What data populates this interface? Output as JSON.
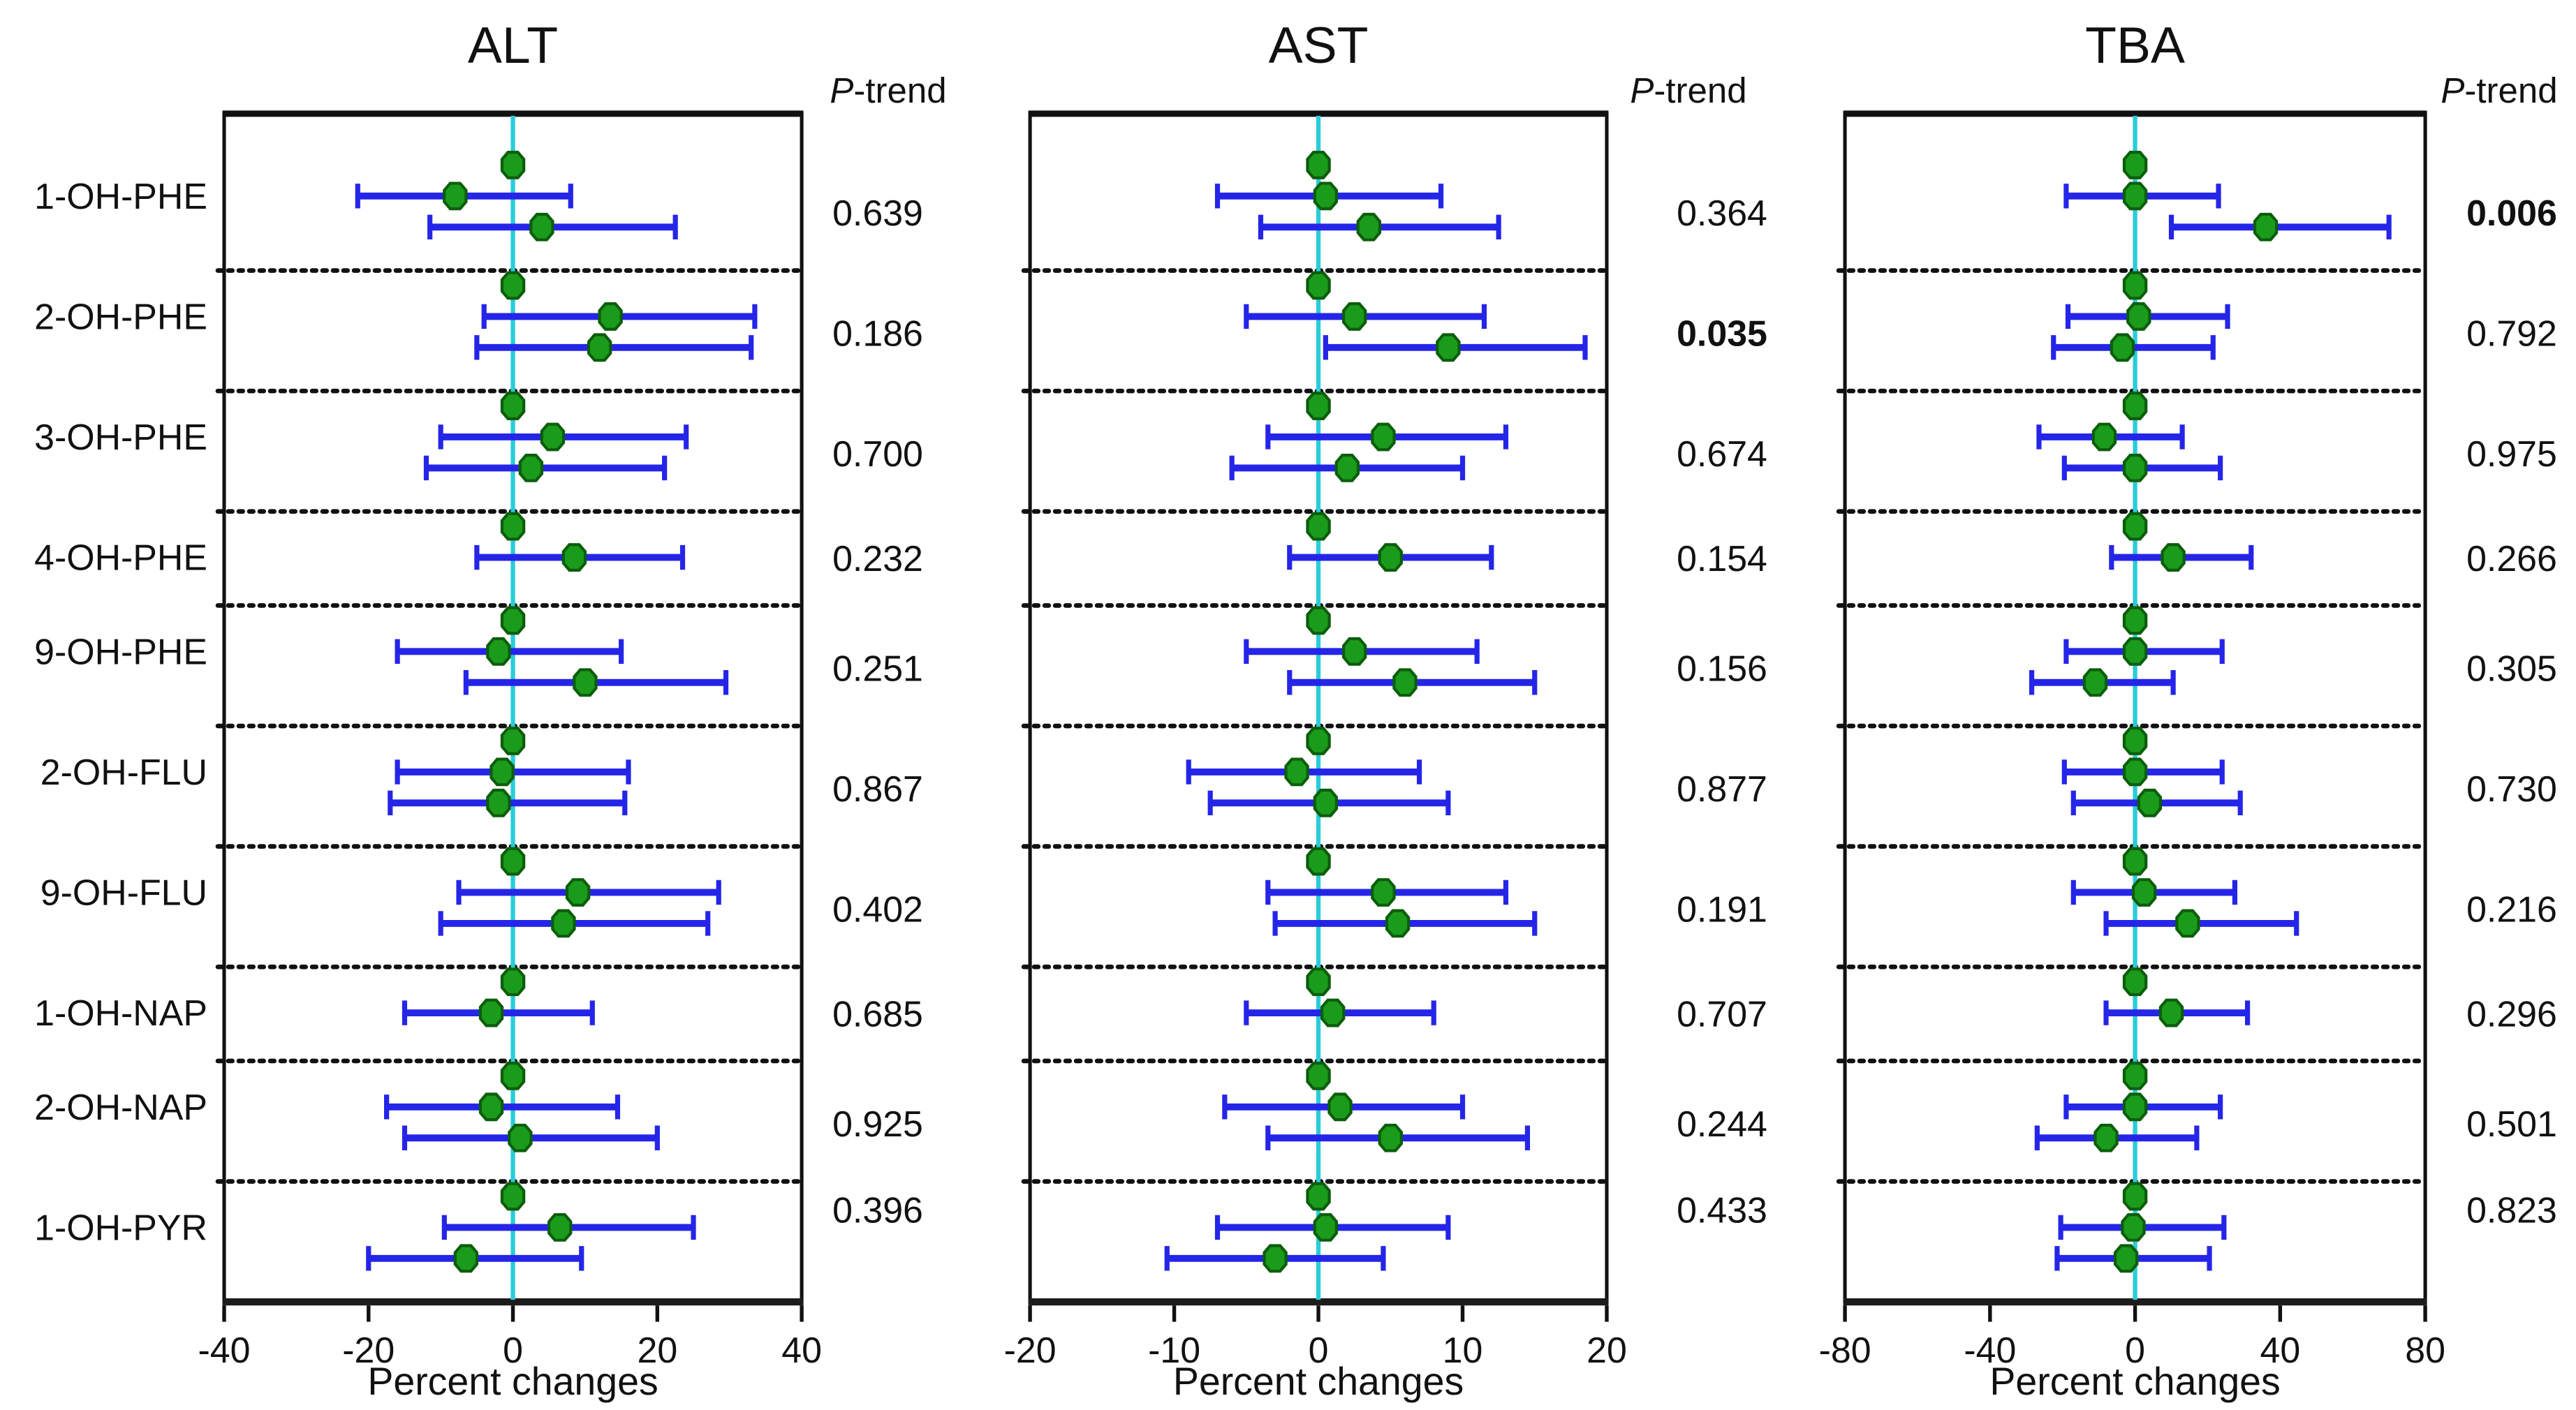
{
  "figure": {
    "panels": [
      "ALT",
      "AST",
      "TBA"
    ],
    "ptrend_header": "P-trend",
    "x_axis_label": "Percent changes"
  },
  "colors": {
    "bar_blue": "#2525e8",
    "marker_green": "#1b9b1b",
    "marker_outline": "#0b5e0b",
    "zero_line_cyan": "#2accd9",
    "text": "#111111",
    "separator": "#111111",
    "box_border": "#111111"
  },
  "chart_data": [
    {
      "type": "scatter",
      "subtype": "forest",
      "title": "ALT",
      "xlabel": "Percent changes",
      "ptrend_header": "P-trend",
      "xlim": [
        -40,
        40
      ],
      "xticks": [
        -40,
        -20,
        0,
        20,
        40
      ],
      "zero_line": 0,
      "rows": [
        {
          "label": "1-OH-PHE",
          "p_trend": "0.639",
          "p_bold": false,
          "groups": [
            {
              "est": 0
            },
            {
              "est": -8,
              "lo": -21.5,
              "hi": 8
            },
            {
              "est": 4,
              "lo": -11.5,
              "hi": 22.5
            }
          ]
        },
        {
          "label": "2-OH-PHE",
          "p_trend": "0.186",
          "p_bold": false,
          "groups": [
            {
              "est": 0
            },
            {
              "est": 13.5,
              "lo": -4,
              "hi": 33.5
            },
            {
              "est": 12,
              "lo": -5,
              "hi": 33
            }
          ]
        },
        {
          "label": "3-OH-PHE",
          "p_trend": "0.700",
          "p_bold": false,
          "groups": [
            {
              "est": 0
            },
            {
              "est": 5.5,
              "lo": -10,
              "hi": 24
            },
            {
              "est": 2.5,
              "lo": -12,
              "hi": 21
            }
          ]
        },
        {
          "label": "4-OH-PHE",
          "p_trend": "0.232",
          "p_bold": false,
          "groups": [
            {
              "est": 0
            },
            {
              "est": 8.5,
              "lo": -5,
              "hi": 23.5
            }
          ]
        },
        {
          "label": "9-OH-PHE",
          "p_trend": "0.251",
          "p_bold": false,
          "groups": [
            {
              "est": 0
            },
            {
              "est": -2,
              "lo": -16,
              "hi": 15
            },
            {
              "est": 10,
              "lo": -6.5,
              "hi": 29.5
            }
          ]
        },
        {
          "label": "2-OH-FLU",
          "p_trend": "0.867",
          "p_bold": false,
          "groups": [
            {
              "est": 0
            },
            {
              "est": -1.5,
              "lo": -16,
              "hi": 16
            },
            {
              "est": -2,
              "lo": -17,
              "hi": 15.5
            }
          ]
        },
        {
          "label": "9-OH-FLU",
          "p_trend": "0.402",
          "p_bold": false,
          "groups": [
            {
              "est": 0
            },
            {
              "est": 9,
              "lo": -7.5,
              "hi": 28.5
            },
            {
              "est": 7,
              "lo": -10,
              "hi": 27
            }
          ]
        },
        {
          "label": "1-OH-NAP",
          "p_trend": "0.685",
          "p_bold": false,
          "groups": [
            {
              "est": 0
            },
            {
              "est": -3,
              "lo": -15,
              "hi": 11
            }
          ]
        },
        {
          "label": "2-OH-NAP",
          "p_trend": "0.925",
          "p_bold": false,
          "groups": [
            {
              "est": 0
            },
            {
              "est": -3,
              "lo": -17.5,
              "hi": 14.5
            },
            {
              "est": 1,
              "lo": -15,
              "hi": 20
            }
          ]
        },
        {
          "label": "1-OH-PYR",
          "p_trend": "0.396",
          "p_bold": false,
          "groups": [
            {
              "est": 0
            },
            {
              "est": 6.5,
              "lo": -9.5,
              "hi": 25
            },
            {
              "est": -6.5,
              "lo": -20,
              "hi": 9.5
            }
          ]
        }
      ]
    },
    {
      "type": "scatter",
      "subtype": "forest",
      "title": "AST",
      "xlabel": "Percent changes",
      "ptrend_header": "P-trend",
      "xlim": [
        -20,
        20
      ],
      "xticks": [
        -20,
        -10,
        0,
        10,
        20
      ],
      "zero_line": 0,
      "rows": [
        {
          "label": "1-OH-PHE",
          "p_trend": "0.364",
          "p_bold": false,
          "groups": [
            {
              "est": 0
            },
            {
              "est": 0.5,
              "lo": -7,
              "hi": 8.5
            },
            {
              "est": 3.5,
              "lo": -4,
              "hi": 12.5
            }
          ]
        },
        {
          "label": "2-OH-PHE",
          "p_trend": "0.035",
          "p_bold": true,
          "groups": [
            {
              "est": 0
            },
            {
              "est": 2.5,
              "lo": -5,
              "hi": 11.5
            },
            {
              "est": 9,
              "lo": 0.5,
              "hi": 18.5
            }
          ]
        },
        {
          "label": "3-OH-PHE",
          "p_trend": "0.674",
          "p_bold": false,
          "groups": [
            {
              "est": 0
            },
            {
              "est": 4.5,
              "lo": -3.5,
              "hi": 13
            },
            {
              "est": 2,
              "lo": -6,
              "hi": 10
            }
          ]
        },
        {
          "label": "4-OH-PHE",
          "p_trend": "0.154",
          "p_bold": false,
          "groups": [
            {
              "est": 0
            },
            {
              "est": 5,
              "lo": -2,
              "hi": 12
            }
          ]
        },
        {
          "label": "9-OH-PHE",
          "p_trend": "0.156",
          "p_bold": false,
          "groups": [
            {
              "est": 0
            },
            {
              "est": 2.5,
              "lo": -5,
              "hi": 11
            },
            {
              "est": 6,
              "lo": -2,
              "hi": 15
            }
          ]
        },
        {
          "label": "2-OH-FLU",
          "p_trend": "0.877",
          "p_bold": false,
          "groups": [
            {
              "est": 0
            },
            {
              "est": -1.5,
              "lo": -9,
              "hi": 7
            },
            {
              "est": 0.5,
              "lo": -7.5,
              "hi": 9
            }
          ]
        },
        {
          "label": "9-OH-FLU",
          "p_trend": "0.191",
          "p_bold": false,
          "groups": [
            {
              "est": 0
            },
            {
              "est": 4.5,
              "lo": -3.5,
              "hi": 13
            },
            {
              "est": 5.5,
              "lo": -3,
              "hi": 15
            }
          ]
        },
        {
          "label": "1-OH-NAP",
          "p_trend": "0.707",
          "p_bold": false,
          "groups": [
            {
              "est": 0
            },
            {
              "est": 1,
              "lo": -5,
              "hi": 8
            }
          ]
        },
        {
          "label": "2-OH-NAP",
          "p_trend": "0.244",
          "p_bold": false,
          "groups": [
            {
              "est": 0
            },
            {
              "est": 1.5,
              "lo": -6.5,
              "hi": 10
            },
            {
              "est": 5,
              "lo": -3.5,
              "hi": 14.5
            }
          ]
        },
        {
          "label": "1-OH-PYR",
          "p_trend": "0.433",
          "p_bold": false,
          "groups": [
            {
              "est": 0
            },
            {
              "est": 0.5,
              "lo": -7,
              "hi": 9
            },
            {
              "est": -3,
              "lo": -10.5,
              "hi": 4.5
            }
          ]
        }
      ]
    },
    {
      "type": "scatter",
      "subtype": "forest",
      "title": "TBA",
      "xlabel": "Percent changes",
      "ptrend_header": "P-trend",
      "xlim": [
        -80,
        80
      ],
      "xticks": [
        -80,
        -40,
        0,
        40,
        80
      ],
      "zero_line": 0,
      "rows": [
        {
          "label": "1-OH-PHE",
          "p_trend": "0.006",
          "p_bold": true,
          "groups": [
            {
              "est": 0
            },
            {
              "est": 0,
              "lo": -19,
              "hi": 23
            },
            {
              "est": 36,
              "lo": 10,
              "hi": 70
            }
          ]
        },
        {
          "label": "2-OH-PHE",
          "p_trend": "0.792",
          "p_bold": false,
          "groups": [
            {
              "est": 0
            },
            {
              "est": 1,
              "lo": -18.5,
              "hi": 25.5
            },
            {
              "est": -3.5,
              "lo": -22.5,
              "hi": 21.5
            }
          ]
        },
        {
          "label": "3-OH-PHE",
          "p_trend": "0.975",
          "p_bold": false,
          "groups": [
            {
              "est": 0
            },
            {
              "est": -8.5,
              "lo": -26.5,
              "hi": 13
            },
            {
              "est": 0,
              "lo": -19.5,
              "hi": 23.5
            }
          ]
        },
        {
          "label": "4-OH-PHE",
          "p_trend": "0.266",
          "p_bold": false,
          "groups": [
            {
              "est": 0
            },
            {
              "est": 10.5,
              "lo": -6.5,
              "hi": 32
            }
          ]
        },
        {
          "label": "9-OH-PHE",
          "p_trend": "0.305",
          "p_bold": false,
          "groups": [
            {
              "est": 0
            },
            {
              "est": 0,
              "lo": -19,
              "hi": 24
            },
            {
              "est": -11,
              "lo": -28.5,
              "hi": 10.5
            }
          ]
        },
        {
          "label": "2-OH-FLU",
          "p_trend": "0.730",
          "p_bold": false,
          "groups": [
            {
              "est": 0
            },
            {
              "est": 0,
              "lo": -19.5,
              "hi": 24
            },
            {
              "est": 4,
              "lo": -17,
              "hi": 29
            }
          ]
        },
        {
          "label": "9-OH-FLU",
          "p_trend": "0.216",
          "p_bold": false,
          "groups": [
            {
              "est": 0
            },
            {
              "est": 2.5,
              "lo": -17,
              "hi": 27.5
            },
            {
              "est": 14.5,
              "lo": -8,
              "hi": 44.5
            }
          ]
        },
        {
          "label": "1-OH-NAP",
          "p_trend": "0.296",
          "p_bold": false,
          "groups": [
            {
              "est": 0
            },
            {
              "est": 10,
              "lo": -8,
              "hi": 31
            }
          ]
        },
        {
          "label": "2-OH-NAP",
          "p_trend": "0.501",
          "p_bold": false,
          "groups": [
            {
              "est": 0
            },
            {
              "est": 0,
              "lo": -19,
              "hi": 23.5
            },
            {
              "est": -8,
              "lo": -27,
              "hi": 17
            }
          ]
        },
        {
          "label": "1-OH-PYR",
          "p_trend": "0.823",
          "p_bold": false,
          "groups": [
            {
              "est": 0
            },
            {
              "est": -0.5,
              "lo": -20.5,
              "hi": 24.5
            },
            {
              "est": -2.5,
              "lo": -21.5,
              "hi": 20.5
            }
          ]
        }
      ]
    }
  ]
}
